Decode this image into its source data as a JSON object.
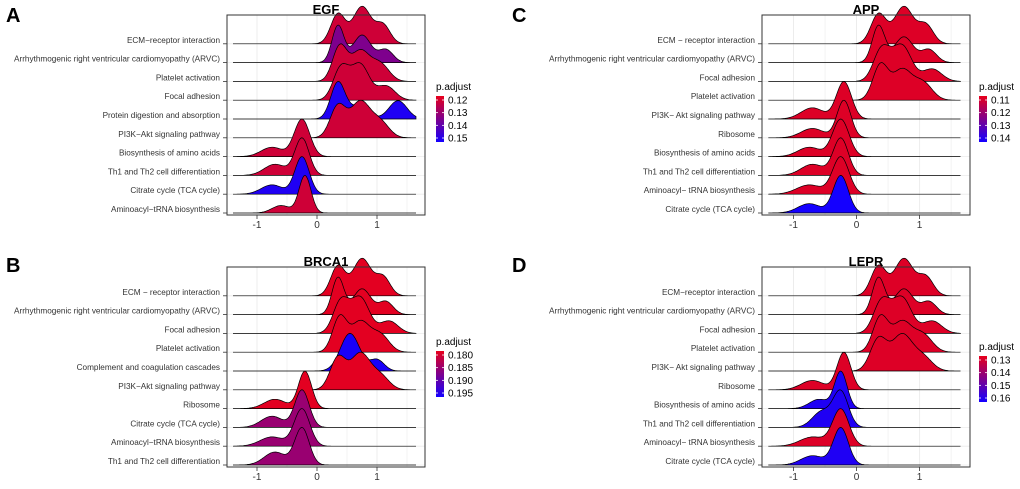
{
  "chart_data": [
    {
      "panel": "A",
      "type": "ridgeline",
      "title": "EGF",
      "xlabel": "",
      "ylabel": "",
      "xlim": [
        -1.5,
        1.8
      ],
      "xticks": [
        -1,
        0,
        1
      ],
      "grid": true,
      "legend": {
        "title": "p.adjust",
        "position": "right",
        "labels": [
          "0.12",
          "0.13",
          "0.14",
          "0.15"
        ],
        "min": 0.115,
        "max": 0.155
      },
      "rows": [
        {
          "label": "ECM−receptor interaction",
          "padj": 0.12,
          "peaks": [
            [
              0.35,
              0.12,
              0.8
            ],
            [
              0.75,
              0.15,
              1.0
            ],
            [
              1.1,
              0.12,
              0.5
            ]
          ]
        },
        {
          "label": "Arrhythmogenic right ventricular cardiomyopathy (ARVC)",
          "padj": 0.135,
          "peaks": [
            [
              0.35,
              0.1,
              1.0
            ],
            [
              0.75,
              0.15,
              0.75
            ],
            [
              1.15,
              0.12,
              0.35
            ]
          ]
        },
        {
          "label": "Platelet activation",
          "padj": 0.12,
          "peaks": [
            [
              0.38,
              0.12,
              1.0
            ],
            [
              0.72,
              0.15,
              0.85
            ],
            [
              1.05,
              0.15,
              0.5
            ]
          ]
        },
        {
          "label": "Focal adhesion",
          "padj": 0.12,
          "peaks": [
            [
              0.4,
              0.13,
              0.9
            ],
            [
              0.72,
              0.15,
              1.0
            ],
            [
              1.15,
              0.15,
              0.4
            ]
          ]
        },
        {
          "label": "Protein digestion and absorption",
          "padj": 0.153,
          "peaks": [
            [
              0.35,
              0.12,
              1.0
            ],
            [
              0.7,
              0.15,
              0.35
            ],
            [
              1.35,
              0.15,
              0.5
            ]
          ]
        },
        {
          "label": "PI3K−Akt signaling pathway",
          "padj": 0.12,
          "peaks": [
            [
              0.35,
              0.13,
              0.8
            ],
            [
              0.72,
              0.16,
              0.9
            ],
            [
              1.05,
              0.15,
              0.4
            ]
          ]
        },
        {
          "label": "Biosynthesis of amino acids",
          "padj": 0.12,
          "peaks": [
            [
              -0.75,
              0.18,
              0.25
            ],
            [
              -0.25,
              0.13,
              1.0
            ]
          ]
        },
        {
          "label": "Th1 and Th2 cell differentiation",
          "padj": 0.12,
          "peaks": [
            [
              -0.7,
              0.18,
              0.3
            ],
            [
              -0.25,
              0.12,
              1.0
            ]
          ]
        },
        {
          "label": "Citrate cycle (TCA cycle)",
          "padj": 0.153,
          "peaks": [
            [
              -0.75,
              0.18,
              0.25
            ],
            [
              -0.25,
              0.12,
              1.0
            ]
          ]
        },
        {
          "label": "Aminoacyl−tRNA biosynthesis",
          "padj": 0.12,
          "peaks": [
            [
              -0.6,
              0.15,
              0.2
            ],
            [
              -0.2,
              0.1,
              1.0
            ]
          ]
        }
      ]
    },
    {
      "panel": "B",
      "type": "ridgeline",
      "title": "BRCA1",
      "xlabel": "",
      "ylabel": "",
      "xlim": [
        -1.5,
        1.8
      ],
      "xticks": [
        -1,
        0,
        1
      ],
      "grid": true,
      "legend": {
        "title": "p.adjust",
        "position": "right",
        "labels": [
          "0.180",
          "0.185",
          "0.190",
          "0.195"
        ],
        "min": 0.1775,
        "max": 0.1975
      },
      "rows": [
        {
          "label": "ECM − receptor interaction",
          "padj": 0.178,
          "peaks": [
            [
              0.35,
              0.12,
              0.8
            ],
            [
              0.75,
              0.15,
              1.0
            ],
            [
              1.1,
              0.12,
              0.5
            ]
          ]
        },
        {
          "label": "Arrhythmogenic right ventricular cardiomyopathy (ARVC)",
          "padj": 0.178,
          "peaks": [
            [
              0.35,
              0.1,
              1.0
            ],
            [
              0.75,
              0.15,
              0.7
            ],
            [
              1.15,
              0.12,
              0.35
            ]
          ]
        },
        {
          "label": "Focal adhesion",
          "padj": 0.178,
          "peaks": [
            [
              0.4,
              0.13,
              0.9
            ],
            [
              0.72,
              0.15,
              1.0
            ],
            [
              1.2,
              0.15,
              0.35
            ]
          ]
        },
        {
          "label": "Platelet activation",
          "padj": 0.178,
          "peaks": [
            [
              0.38,
              0.12,
              1.0
            ],
            [
              0.72,
              0.15,
              0.85
            ],
            [
              1.05,
              0.15,
              0.5
            ]
          ]
        },
        {
          "label": "Complement and coagulation cascades",
          "padj": 0.197,
          "peaks": [
            [
              0.55,
              0.16,
              1.0
            ],
            [
              1.0,
              0.12,
              0.3
            ]
          ]
        },
        {
          "label": "PI3K−Akt signaling pathway",
          "padj": 0.178,
          "peaks": [
            [
              0.35,
              0.13,
              0.8
            ],
            [
              0.72,
              0.16,
              0.9
            ],
            [
              1.05,
              0.15,
              0.35
            ]
          ]
        },
        {
          "label": "Ribosome",
          "padj": 0.178,
          "peaks": [
            [
              -0.7,
              0.18,
              0.25
            ],
            [
              -0.2,
              0.11,
              1.0
            ]
          ]
        },
        {
          "label": "Citrate cycle (TCA cycle)",
          "padj": 0.185,
          "peaks": [
            [
              -0.75,
              0.18,
              0.3
            ],
            [
              -0.25,
              0.12,
              1.0
            ]
          ]
        },
        {
          "label": "Aminoacyl−tRNA biosynthesis",
          "padj": 0.185,
          "peaks": [
            [
              -0.75,
              0.2,
              0.25
            ],
            [
              -0.25,
              0.13,
              1.0
            ]
          ]
        },
        {
          "label": "Th1 and Th2 cell differentiation",
          "padj": 0.185,
          "peaks": [
            [
              -0.7,
              0.18,
              0.35
            ],
            [
              -0.25,
              0.12,
              1.0
            ]
          ]
        }
      ]
    },
    {
      "panel": "C",
      "type": "ridgeline",
      "title": "APP",
      "xlabel": "",
      "ylabel": "",
      "xlim": [
        -1.5,
        1.8
      ],
      "xticks": [
        -1,
        0,
        1
      ],
      "grid": true,
      "legend": {
        "title": "p.adjust",
        "position": "right",
        "labels": [
          "0.11",
          "0.12",
          "0.13",
          "0.14"
        ],
        "min": 0.105,
        "max": 0.145
      },
      "rows": [
        {
          "label": "ECM − receptor interaction",
          "padj": 0.107,
          "peaks": [
            [
              0.35,
              0.12,
              0.8
            ],
            [
              0.75,
              0.15,
              1.0
            ],
            [
              1.1,
              0.12,
              0.5
            ]
          ]
        },
        {
          "label": "Arrhythmogenic right ventricular cardiomyopathy (ARVC)",
          "padj": 0.107,
          "peaks": [
            [
              0.35,
              0.1,
              1.0
            ],
            [
              0.75,
              0.15,
              0.7
            ],
            [
              1.15,
              0.12,
              0.35
            ]
          ]
        },
        {
          "label": "Focal adhesion",
          "padj": 0.107,
          "peaks": [
            [
              0.4,
              0.13,
              0.9
            ],
            [
              0.72,
              0.15,
              1.0
            ],
            [
              1.2,
              0.15,
              0.35
            ]
          ]
        },
        {
          "label": "Platelet activation",
          "padj": 0.107,
          "peaks": [
            [
              0.38,
              0.12,
              1.0
            ],
            [
              0.72,
              0.15,
              0.85
            ],
            [
              1.05,
              0.15,
              0.5
            ]
          ]
        },
        {
          "label": "PI3K− Akt signaling pathway",
          "padj": 0.107,
          "peaks": [
            [
              -0.7,
              0.18,
              0.3
            ],
            [
              -0.2,
              0.12,
              1.0
            ]
          ]
        },
        {
          "label": "Ribosome",
          "padj": 0.107,
          "peaks": [
            [
              -0.7,
              0.18,
              0.25
            ],
            [
              -0.2,
              0.11,
              1.0
            ]
          ]
        },
        {
          "label": "Biosynthesis of amino acids",
          "padj": 0.107,
          "peaks": [
            [
              -0.75,
              0.18,
              0.25
            ],
            [
              -0.25,
              0.13,
              1.0
            ]
          ]
        },
        {
          "label": "Th1 and Th2 cell differentiation",
          "padj": 0.107,
          "peaks": [
            [
              -0.7,
              0.18,
              0.3
            ],
            [
              -0.25,
              0.12,
              1.0
            ]
          ]
        },
        {
          "label": "Aminoacyl− tRNA biosynthesis",
          "padj": 0.107,
          "peaks": [
            [
              -0.75,
              0.2,
              0.25
            ],
            [
              -0.25,
              0.13,
              1.0
            ]
          ]
        },
        {
          "label": "Citrate cycle (TCA cycle)",
          "padj": 0.145,
          "peaks": [
            [
              -0.75,
              0.18,
              0.25
            ],
            [
              -0.25,
              0.12,
              1.0
            ]
          ]
        }
      ]
    },
    {
      "panel": "D",
      "type": "ridgeline",
      "title": "LEPR",
      "xlabel": "",
      "ylabel": "",
      "xlim": [
        -1.5,
        1.8
      ],
      "xticks": [
        -1,
        0,
        1
      ],
      "grid": true,
      "legend": {
        "title": "p.adjust",
        "position": "right",
        "labels": [
          "0.13",
          "0.14",
          "0.15",
          "0.16"
        ],
        "min": 0.125,
        "max": 0.165
      },
      "rows": [
        {
          "label": "ECM−receptor interaction",
          "padj": 0.127,
          "peaks": [
            [
              0.35,
              0.12,
              0.8
            ],
            [
              0.75,
              0.15,
              1.0
            ],
            [
              1.1,
              0.12,
              0.5
            ]
          ]
        },
        {
          "label": "Arrhythmogenic right ventricular cardiomyopathy (ARVC)",
          "padj": 0.127,
          "peaks": [
            [
              0.35,
              0.1,
              1.0
            ],
            [
              0.75,
              0.15,
              0.7
            ],
            [
              1.15,
              0.12,
              0.35
            ]
          ]
        },
        {
          "label": "Focal adhesion",
          "padj": 0.127,
          "peaks": [
            [
              0.4,
              0.13,
              0.9
            ],
            [
              0.72,
              0.15,
              1.0
            ],
            [
              1.2,
              0.15,
              0.35
            ]
          ]
        },
        {
          "label": "Platelet activation",
          "padj": 0.127,
          "peaks": [
            [
              0.38,
              0.12,
              1.0
            ],
            [
              0.72,
              0.15,
              0.85
            ],
            [
              1.05,
              0.15,
              0.5
            ]
          ]
        },
        {
          "label": "PI3K− Akt signaling pathway",
          "padj": 0.127,
          "peaks": [
            [
              0.35,
              0.13,
              0.8
            ],
            [
              0.72,
              0.16,
              0.9
            ],
            [
              1.05,
              0.15,
              0.35
            ]
          ]
        },
        {
          "label": "Ribosome",
          "padj": 0.127,
          "peaks": [
            [
              -0.7,
              0.18,
              0.25
            ],
            [
              -0.2,
              0.11,
              1.0
            ]
          ]
        },
        {
          "label": "Biosynthesis of amino acids",
          "padj": 0.163,
          "peaks": [
            [
              -0.6,
              0.15,
              0.25
            ],
            [
              -0.25,
              0.1,
              1.0
            ]
          ]
        },
        {
          "label": "Th1 and Th2 cell differentiation",
          "padj": 0.163,
          "peaks": [
            [
              -0.55,
              0.15,
              0.45
            ],
            [
              -0.25,
              0.12,
              1.0
            ]
          ]
        },
        {
          "label": "Aminoacyl− tRNA biosynthesis",
          "padj": 0.127,
          "peaks": [
            [
              -0.7,
              0.2,
              0.25
            ],
            [
              -0.25,
              0.13,
              1.0
            ]
          ]
        },
        {
          "label": "Citrate cycle (TCA cycle)",
          "padj": 0.163,
          "peaks": [
            [
              -0.7,
              0.18,
              0.25
            ],
            [
              -0.25,
              0.12,
              1.0
            ]
          ]
        }
      ]
    }
  ],
  "colors": {
    "low_padj": "#e8001b",
    "high_padj": "#1400ff",
    "grid": "#ebebeb",
    "axis": "#333333"
  }
}
